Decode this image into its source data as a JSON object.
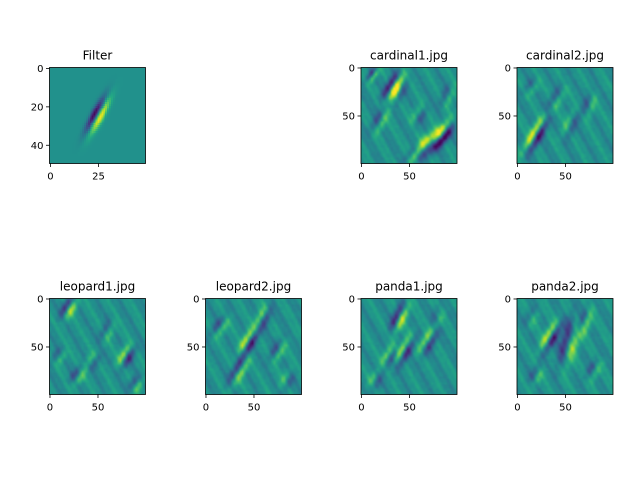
{
  "chart_data": [
    {
      "type": "heatmap",
      "title": "Filter",
      "xticks": [
        0,
        25
      ],
      "yticks": [
        0,
        20,
        40
      ],
      "xlim": [
        0,
        49
      ],
      "ylim": [
        49,
        0
      ],
      "colormap": "viridis",
      "features": [
        {
          "cx": 25,
          "cy": 25,
          "angle": -62,
          "len": 12,
          "sep": 1.6,
          "wid": 1.3,
          "amp": 1.0
        }
      ]
    },
    {
      "type": "heatmap",
      "title": "cardinal1.jpg",
      "xticks": [
        0,
        50
      ],
      "yticks": [
        0,
        50
      ],
      "xlim": [
        0,
        99
      ],
      "ylim": [
        99,
        0
      ],
      "colormap": "viridis",
      "features": [
        {
          "cx": 33,
          "cy": 20,
          "angle": -60,
          "len": 18,
          "sep": 3,
          "wid": 3,
          "amp": 1.0
        },
        {
          "cx": 40,
          "cy": 25,
          "angle": -65,
          "len": 16,
          "sep": 2.5,
          "wid": 3,
          "amp": -0.5
        },
        {
          "cx": 12,
          "cy": 8,
          "angle": -55,
          "len": 10,
          "sep": 2,
          "wid": 2,
          "amp": 0.6
        },
        {
          "cx": 70,
          "cy": 80,
          "angle": -40,
          "len": 25,
          "sep": 4,
          "wid": 4,
          "amp": -0.9
        },
        {
          "cx": 85,
          "cy": 70,
          "angle": -55,
          "len": 20,
          "sep": 3,
          "wid": 3,
          "amp": -0.8
        },
        {
          "cx": 55,
          "cy": 90,
          "angle": -50,
          "len": 15,
          "sep": 3,
          "wid": 3,
          "amp": 0.6
        },
        {
          "cx": 20,
          "cy": 55,
          "angle": -60,
          "len": 18,
          "sep": 3,
          "wid": 3,
          "amp": 0.5
        },
        {
          "cx": 60,
          "cy": 50,
          "angle": -60,
          "len": 14,
          "sep": 3,
          "wid": 3,
          "amp": -0.4
        },
        {
          "cx": 90,
          "cy": 30,
          "angle": -70,
          "len": 14,
          "sep": 3,
          "wid": 3,
          "amp": 0.4
        }
      ]
    },
    {
      "type": "heatmap",
      "title": "cardinal2.jpg",
      "xticks": [
        0,
        50
      ],
      "yticks": [
        0,
        50
      ],
      "xlim": [
        0,
        99
      ],
      "ylim": [
        99,
        0
      ],
      "colormap": "viridis",
      "features": [
        {
          "cx": 20,
          "cy": 70,
          "angle": -60,
          "len": 25,
          "sep": 3,
          "wid": 3,
          "amp": -1.0
        },
        {
          "cx": 40,
          "cy": 35,
          "angle": -60,
          "len": 20,
          "sep": 3,
          "wid": 3,
          "amp": 0.4
        },
        {
          "cx": 55,
          "cy": 60,
          "angle": -65,
          "len": 18,
          "sep": 3,
          "wid": 3,
          "amp": -0.4
        },
        {
          "cx": 75,
          "cy": 40,
          "angle": -70,
          "len": 16,
          "sep": 3,
          "wid": 3,
          "amp": 0.4
        },
        {
          "cx": 15,
          "cy": 20,
          "angle": -55,
          "len": 12,
          "sep": 3,
          "wid": 3,
          "amp": 0.3
        }
      ]
    },
    {
      "type": "heatmap",
      "title": "leopard1.jpg",
      "xticks": [
        0,
        50
      ],
      "yticks": [
        0,
        50
      ],
      "xlim": [
        0,
        99
      ],
      "ylim": [
        99,
        0
      ],
      "colormap": "viridis",
      "features": [
        {
          "cx": 20,
          "cy": 10,
          "angle": -60,
          "len": 14,
          "sep": 3,
          "wid": 3,
          "amp": 0.8
        },
        {
          "cx": 80,
          "cy": 60,
          "angle": -60,
          "len": 14,
          "sep": 3,
          "wid": 3,
          "amp": -0.8
        },
        {
          "cx": 30,
          "cy": 80,
          "angle": -55,
          "len": 12,
          "sep": 3,
          "wid": 3,
          "amp": 0.5
        },
        {
          "cx": 60,
          "cy": 35,
          "angle": -65,
          "len": 14,
          "sep": 3,
          "wid": 3,
          "amp": 0.4
        },
        {
          "cx": 10,
          "cy": 60,
          "angle": -60,
          "len": 10,
          "sep": 3,
          "wid": 3,
          "amp": 0.4
        },
        {
          "cx": 90,
          "cy": 90,
          "angle": -60,
          "len": 10,
          "sep": 3,
          "wid": 3,
          "amp": 0.5
        },
        {
          "cx": 45,
          "cy": 65,
          "angle": -60,
          "len": 12,
          "sep": 3,
          "wid": 3,
          "amp": -0.4
        }
      ]
    },
    {
      "type": "heatmap",
      "title": "leopard2.jpg",
      "xticks": [
        0,
        50
      ],
      "yticks": [
        0,
        50
      ],
      "xlim": [
        0,
        99
      ],
      "ylim": [
        99,
        0
      ],
      "colormap": "viridis",
      "features": [
        {
          "cx": 45,
          "cy": 45,
          "angle": -60,
          "len": 18,
          "sep": 3,
          "wid": 3,
          "amp": -0.9
        },
        {
          "cx": 35,
          "cy": 75,
          "angle": -60,
          "len": 20,
          "sep": 3,
          "wid": 3,
          "amp": 0.7
        },
        {
          "cx": 60,
          "cy": 20,
          "angle": -65,
          "len": 16,
          "sep": 3,
          "wid": 3,
          "amp": -0.6
        },
        {
          "cx": 15,
          "cy": 30,
          "angle": -55,
          "len": 14,
          "sep": 3,
          "wid": 3,
          "amp": 0.5
        },
        {
          "cx": 75,
          "cy": 55,
          "angle": -60,
          "len": 14,
          "sep": 3,
          "wid": 3,
          "amp": 0.5
        },
        {
          "cx": 85,
          "cy": 85,
          "angle": -60,
          "len": 12,
          "sep": 3,
          "wid": 3,
          "amp": -0.4
        }
      ]
    },
    {
      "type": "heatmap",
      "title": "panda1.jpg",
      "xticks": [
        0,
        50
      ],
      "yticks": [
        0,
        50
      ],
      "xlim": [
        0,
        99
      ],
      "ylim": [
        99,
        0
      ],
      "colormap": "viridis",
      "features": [
        {
          "cx": 40,
          "cy": 20,
          "angle": -65,
          "len": 18,
          "sep": 3,
          "wid": 3,
          "amp": 0.9
        },
        {
          "cx": 45,
          "cy": 55,
          "angle": -60,
          "len": 20,
          "sep": 3,
          "wid": 3,
          "amp": -0.8
        },
        {
          "cx": 70,
          "cy": 45,
          "angle": -60,
          "len": 18,
          "sep": 3,
          "wid": 3,
          "amp": -0.7
        },
        {
          "cx": 30,
          "cy": 60,
          "angle": -60,
          "len": 14,
          "sep": 3,
          "wid": 3,
          "amp": -0.6
        },
        {
          "cx": 80,
          "cy": 20,
          "angle": -70,
          "len": 12,
          "sep": 3,
          "wid": 3,
          "amp": 0.3
        },
        {
          "cx": 15,
          "cy": 85,
          "angle": -60,
          "len": 12,
          "sep": 3,
          "wid": 3,
          "amp": -0.4
        }
      ]
    },
    {
      "type": "heatmap",
      "title": "panda2.jpg",
      "xticks": [
        0,
        50
      ],
      "yticks": [
        0,
        50
      ],
      "xlim": [
        0,
        99
      ],
      "ylim": [
        99,
        0
      ],
      "colormap": "viridis",
      "features": [
        {
          "cx": 35,
          "cy": 40,
          "angle": -60,
          "len": 20,
          "sep": 3,
          "wid": 3,
          "amp": -0.9
        },
        {
          "cx": 55,
          "cy": 45,
          "angle": -75,
          "len": 30,
          "sep": 4,
          "wid": 4,
          "amp": 0.8
        },
        {
          "cx": 70,
          "cy": 25,
          "angle": -70,
          "len": 18,
          "sep": 3,
          "wid": 3,
          "amp": 0.6
        },
        {
          "cx": 80,
          "cy": 75,
          "angle": -60,
          "len": 14,
          "sep": 3,
          "wid": 3,
          "amp": 0.4
        },
        {
          "cx": 20,
          "cy": 80,
          "angle": -60,
          "len": 12,
          "sep": 3,
          "wid": 3,
          "amp": 0.4
        },
        {
          "cx": 15,
          "cy": 20,
          "angle": -60,
          "len": 12,
          "sep": 3,
          "wid": 3,
          "amp": 0.3
        }
      ]
    }
  ]
}
